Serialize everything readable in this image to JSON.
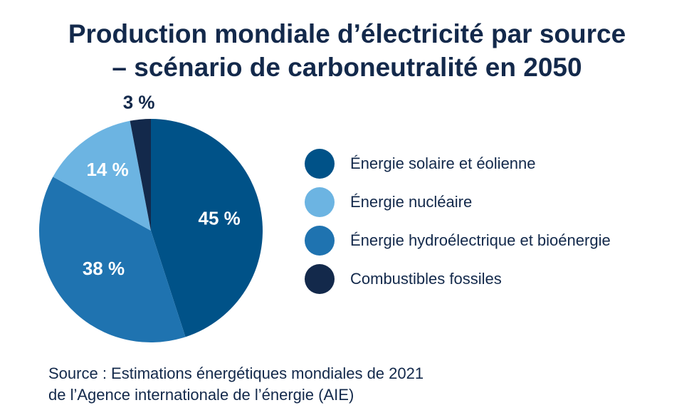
{
  "title_lines": [
    "Production mondiale d’électricité par source",
    "– scénario de carboneutralité en 2050"
  ],
  "chart_data": {
    "type": "pie",
    "title": "Production mondiale d’électricité par source – scénario de carboneutralité en 2050",
    "slices": [
      {
        "name": "Énergie solaire et éolienne",
        "value": 45,
        "label": "45 %",
        "color": "#005288"
      },
      {
        "name": "Énergie hydroélectrique et bioénergie",
        "value": 38,
        "label": "38 %",
        "color": "#1f73b0"
      },
      {
        "name": "Énergie nucléaire",
        "value": 14,
        "label": "14 %",
        "color": "#6cb4e2"
      },
      {
        "name": "Combustibles fossiles",
        "value": 3,
        "label": "3 %",
        "color": "#13294b"
      }
    ],
    "legend": [
      {
        "label": "Énergie solaire et éolienne",
        "color": "#005288"
      },
      {
        "label": "Énergie nucléaire",
        "color": "#6cb4e2"
      },
      {
        "label": "Énergie hydroélectrique et bioénergie",
        "color": "#1f73b0"
      },
      {
        "label": "Combustibles fossiles",
        "color": "#13294b"
      }
    ],
    "legend_position": "right"
  },
  "source_lines": [
    "Source : Estimations énergétiques mondiales de 2021",
    "de l’Agence internationale de l’énergie (AIE)"
  ]
}
